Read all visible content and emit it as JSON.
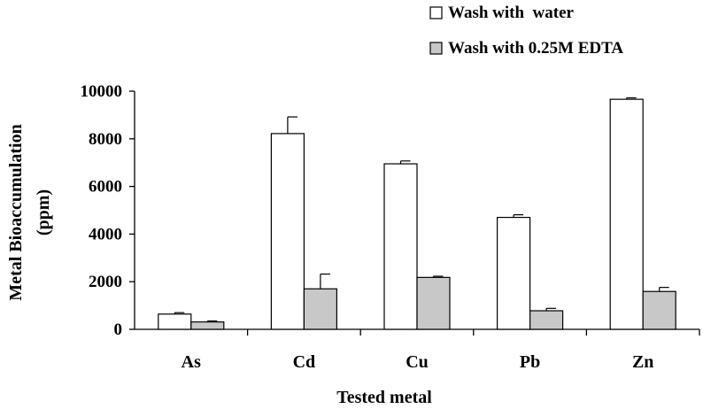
{
  "chart_data": {
    "type": "bar",
    "title": "",
    "xlabel": "Tested metal",
    "ylabel_line1": "Metal Bioaccumulation",
    "ylabel_line2": "(ppm)",
    "categories": [
      "As",
      "Cd",
      "Cu",
      "Pb",
      "Zn"
    ],
    "ylim": [
      0,
      10000
    ],
    "yticks": [
      0,
      2000,
      4000,
      6000,
      8000,
      10000
    ],
    "ytick_labels": [
      "0",
      "2000",
      "4000",
      "6000",
      "8000",
      "10000"
    ],
    "grid": false,
    "legend_position": "top-right",
    "series": [
      {
        "name": "Wash with  water",
        "color": "#ffffff",
        "values": [
          640,
          8220,
          6950,
          4700,
          9660
        ],
        "errors": [
          60,
          700,
          120,
          110,
          60
        ]
      },
      {
        "name": "Wash with 0.25M EDTA",
        "color": "#c8c8c8",
        "values": [
          310,
          1700,
          2180,
          780,
          1590
        ],
        "errors": [
          40,
          620,
          50,
          100,
          170
        ]
      }
    ]
  }
}
